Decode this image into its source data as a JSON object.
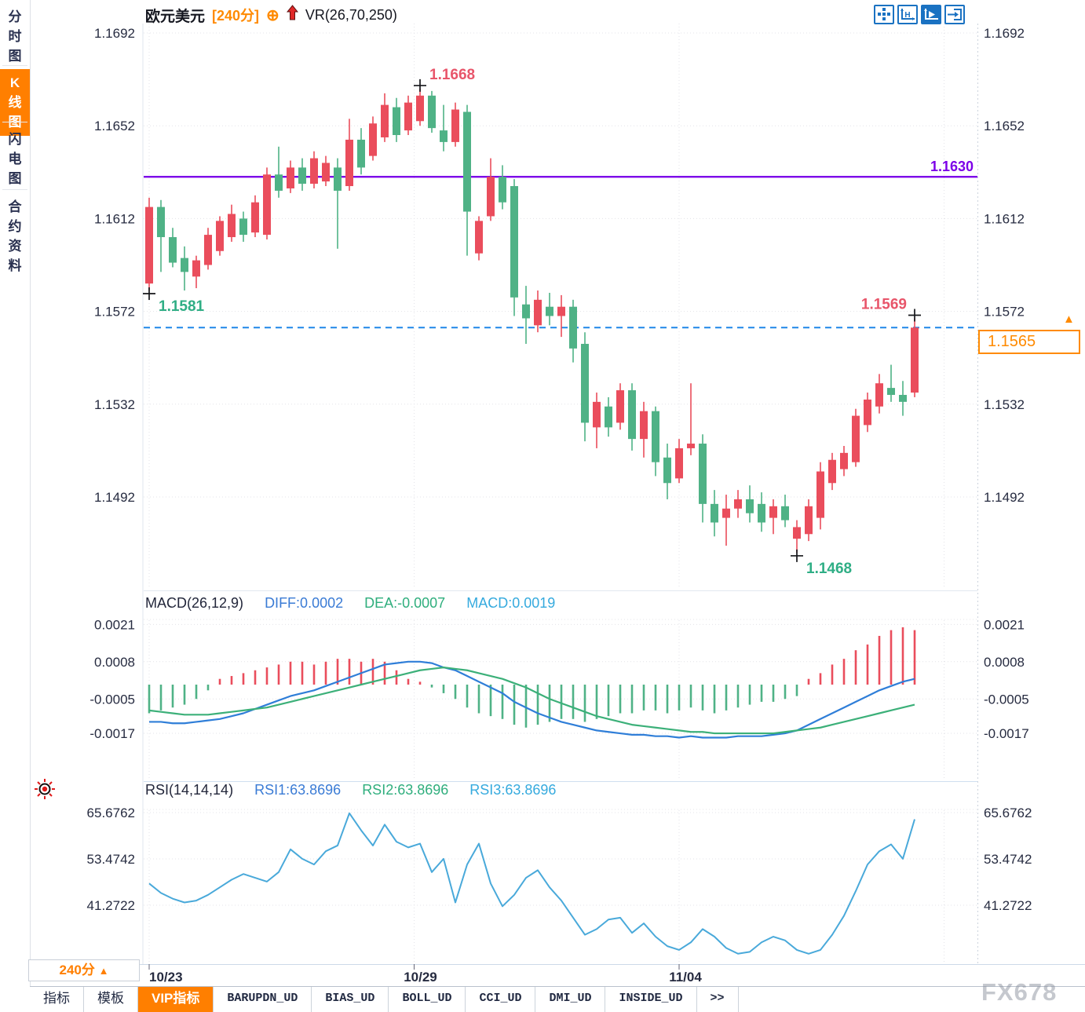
{
  "sidebar": {
    "items": [
      {
        "label": "分时图",
        "active": false
      },
      {
        "label": "K线图",
        "active": true
      },
      {
        "label": "闪电图",
        "active": false
      },
      {
        "label": "合约资料",
        "active": false
      }
    ]
  },
  "header": {
    "symbol": "欧元美元",
    "period_tag": "[240分]",
    "plus_icon": "⊕",
    "indicator_label": "VR(26,70,250)"
  },
  "toolbar": {
    "icons": [
      {
        "name": "pan-crosshair-icon",
        "active": false
      },
      {
        "name": "axis-scale-icon",
        "active": false
      },
      {
        "name": "axis-play-icon",
        "active": true
      },
      {
        "name": "exit-right-icon",
        "active": false
      }
    ]
  },
  "macd_header": {
    "title": "MACD(26,12,9)",
    "diff": "DIFF:0.0002",
    "dea": "DEA:-0.0007",
    "macd": "MACD:0.0019"
  },
  "rsi_header": {
    "title": "RSI(14,14,14)",
    "rsi1": "RSI1:63.8696",
    "rsi2": "RSI2:63.8696",
    "rsi3": "RSI3:63.8696"
  },
  "price_tag": {
    "value": "1.1565",
    "arrow": "▲"
  },
  "period_selector": {
    "label": "240分",
    "arrow": "▲"
  },
  "bottom_tabs": {
    "items": [
      {
        "label": "指标",
        "active": false
      },
      {
        "label": "模板",
        "active": false
      },
      {
        "label": "VIP指标",
        "active": true
      },
      {
        "label": "BARUPDN_UD",
        "active": false
      },
      {
        "label": "BIAS_UD",
        "active": false
      },
      {
        "label": "BOLL_UD",
        "active": false
      },
      {
        "label": "CCI_UD",
        "active": false
      },
      {
        "label": "DMI_UD",
        "active": false
      },
      {
        "label": "INSIDE_UD",
        "active": false
      },
      {
        "label": ">>",
        "active": false
      }
    ]
  },
  "watermark": "FX678",
  "colors": {
    "up": "#ea4d5c",
    "down": "#4fb286",
    "diff_line": "#2f7ed8",
    "dea_line": "#3cb079",
    "rsi_line": "#49a9da",
    "accent_orange": "#ff8a00",
    "purple": "#7c00e8",
    "dashed_blue": "#1f87e8",
    "icon_blue": "#1a72c2",
    "marker_red": "#e8556a",
    "marker_green": "#2fae85"
  },
  "chart_data": {
    "type": "candlestick",
    "title": "欧元美元 240分",
    "main": {
      "y_ticks": [
        "1.1692",
        "1.1652",
        "1.1612",
        "1.1572",
        "1.1532",
        "1.1492"
      ],
      "x_ticks": [
        {
          "label": "10/23",
          "index": 0
        },
        {
          "label": "10/29",
          "index": 22.5
        },
        {
          "label": "11/04",
          "index": 45
        }
      ],
      "support_line": {
        "value": 1.163,
        "label": "1.1630"
      },
      "last_price_line": {
        "value": 1.1565,
        "label": "1.1565"
      },
      "markers": [
        {
          "index": 0,
          "price": 1.1581,
          "pos": "low",
          "label": "1.1581",
          "color": "green",
          "align": "right"
        },
        {
          "index": 23,
          "price": 1.1668,
          "pos": "high",
          "label": "1.1668",
          "color": "red",
          "align": "right"
        },
        {
          "index": 55,
          "price": 1.1468,
          "pos": "low",
          "label": "1.1468",
          "color": "green",
          "align": "right"
        },
        {
          "index": 65,
          "price": 1.1569,
          "pos": "high",
          "label": "1.1569",
          "color": "red",
          "align": "left"
        }
      ],
      "ohlc": [
        [
          1.1584,
          1.1621,
          1.1581,
          1.1617
        ],
        [
          1.1617,
          1.162,
          1.1589,
          1.1604
        ],
        [
          1.1604,
          1.1608,
          1.1591,
          1.1593
        ],
        [
          1.1595,
          1.16,
          1.1581,
          1.1589
        ],
        [
          1.1587,
          1.1596,
          1.1582,
          1.1594
        ],
        [
          1.1592,
          1.1608,
          1.159,
          1.1605
        ],
        [
          1.1598,
          1.1613,
          1.1596,
          1.1611
        ],
        [
          1.1604,
          1.1618,
          1.1602,
          1.1614
        ],
        [
          1.1612,
          1.1615,
          1.1602,
          1.1605
        ],
        [
          1.1606,
          1.1622,
          1.1604,
          1.1619
        ],
        [
          1.1605,
          1.1634,
          1.1603,
          1.1631
        ],
        [
          1.1631,
          1.1643,
          1.1621,
          1.1624
        ],
        [
          1.1625,
          1.1637,
          1.1623,
          1.1634
        ],
        [
          1.1634,
          1.1638,
          1.1624,
          1.1627
        ],
        [
          1.1627,
          1.1641,
          1.1625,
          1.1638
        ],
        [
          1.1628,
          1.1639,
          1.1626,
          1.1636
        ],
        [
          1.1634,
          1.1638,
          1.1599,
          1.1624
        ],
        [
          1.1626,
          1.1655,
          1.1624,
          1.1646
        ],
        [
          1.1646,
          1.1651,
          1.1631,
          1.1634
        ],
        [
          1.1639,
          1.1656,
          1.1637,
          1.1653
        ],
        [
          1.1647,
          1.1666,
          1.1645,
          1.1661
        ],
        [
          1.166,
          1.1664,
          1.1645,
          1.1648
        ],
        [
          1.165,
          1.1665,
          1.1648,
          1.1662
        ],
        [
          1.1654,
          1.1668,
          1.1652,
          1.1665
        ],
        [
          1.1665,
          1.1667,
          1.1649,
          1.1651
        ],
        [
          1.165,
          1.1661,
          1.1641,
          1.1645
        ],
        [
          1.1645,
          1.1662,
          1.1643,
          1.1659
        ],
        [
          1.1658,
          1.1661,
          1.1596,
          1.1615
        ],
        [
          1.1597,
          1.1613,
          1.1594,
          1.1611
        ],
        [
          1.1613,
          1.1638,
          1.1611,
          1.163
        ],
        [
          1.163,
          1.1635,
          1.1616,
          1.1619
        ],
        [
          1.1626,
          1.1629,
          1.157,
          1.1578
        ],
        [
          1.1575,
          1.1583,
          1.1558,
          1.1569
        ],
        [
          1.1566,
          1.1581,
          1.1563,
          1.1577
        ],
        [
          1.1574,
          1.158,
          1.1566,
          1.157
        ],
        [
          1.157,
          1.1579,
          1.1561,
          1.1574
        ],
        [
          1.1574,
          1.1577,
          1.155,
          1.1556
        ],
        [
          1.1558,
          1.1563,
          1.1516,
          1.1524
        ],
        [
          1.1522,
          1.1537,
          1.1513,
          1.1533
        ],
        [
          1.1531,
          1.1535,
          1.1518,
          1.1522
        ],
        [
          1.1524,
          1.1541,
          1.1521,
          1.1538
        ],
        [
          1.1538,
          1.1541,
          1.1512,
          1.1517
        ],
        [
          1.1517,
          1.1533,
          1.1509,
          1.1529
        ],
        [
          1.1529,
          1.1531,
          1.1501,
          1.1507
        ],
        [
          1.1509,
          1.1515,
          1.1491,
          1.1498
        ],
        [
          1.15,
          1.1517,
          1.1498,
          1.1513
        ],
        [
          1.1513,
          1.1541,
          1.151,
          1.1515
        ],
        [
          1.1515,
          1.1519,
          1.1481,
          1.1489
        ],
        [
          1.1489,
          1.1495,
          1.1475,
          1.1481
        ],
        [
          1.1483,
          1.1493,
          1.1471,
          1.1487
        ],
        [
          1.1487,
          1.1495,
          1.1483,
          1.1491
        ],
        [
          1.1491,
          1.1497,
          1.1481,
          1.1485
        ],
        [
          1.1489,
          1.1494,
          1.1477,
          1.1481
        ],
        [
          1.1483,
          1.1491,
          1.1476,
          1.1488
        ],
        [
          1.1488,
          1.1493,
          1.1479,
          1.1482
        ],
        [
          1.1474,
          1.1482,
          1.1468,
          1.1479
        ],
        [
          1.1476,
          1.1491,
          1.1473,
          1.1488
        ],
        [
          1.1483,
          1.1507,
          1.1478,
          1.1503
        ],
        [
          1.1498,
          1.1511,
          1.1495,
          1.1508
        ],
        [
          1.1504,
          1.1514,
          1.1501,
          1.1511
        ],
        [
          1.1507,
          1.153,
          1.1505,
          1.1527
        ],
        [
          1.1523,
          1.1537,
          1.152,
          1.1534
        ],
        [
          1.1531,
          1.1545,
          1.1528,
          1.1541
        ],
        [
          1.1539,
          1.1549,
          1.1533,
          1.1536
        ],
        [
          1.1536,
          1.1542,
          1.1527,
          1.1533
        ],
        [
          1.1537,
          1.1569,
          1.1535,
          1.1565
        ]
      ]
    },
    "macd": {
      "params": "26,12,9",
      "y_ticks": [
        "0.0021",
        "0.0008",
        "-0.0005",
        "-0.0017"
      ],
      "hist": [
        -10,
        -9,
        -8,
        -7,
        -5,
        -2,
        2,
        3,
        4,
        5,
        6,
        7,
        8,
        8,
        7,
        8,
        9,
        9,
        8,
        9,
        8,
        5,
        2,
        1,
        -1,
        -3,
        -5,
        -8,
        -10,
        -11,
        -12,
        -14,
        -15,
        -14,
        -13,
        -12,
        -12,
        -13,
        -12,
        -11,
        -10,
        -10,
        -9,
        -9,
        -10,
        -9,
        -8,
        -9,
        -10,
        -9,
        -8,
        -7,
        -6,
        -6,
        -5,
        -4,
        2,
        4,
        7,
        9,
        12,
        14,
        17,
        19,
        20,
        19
      ],
      "diff": [
        -13,
        -13,
        -13.5,
        -13.5,
        -13,
        -12.5,
        -12,
        -11,
        -10,
        -8.5,
        -7,
        -5.5,
        -4,
        -3,
        -2,
        -0.5,
        1,
        2.5,
        4,
        5.5,
        7,
        7.5,
        8,
        8,
        7.5,
        6,
        5,
        3,
        1,
        -1,
        -3,
        -6,
        -8,
        -10,
        -11.5,
        -13,
        -14,
        -15,
        -16,
        -16.5,
        -17,
        -17.5,
        -17.5,
        -18,
        -18,
        -18.5,
        -18,
        -18.5,
        -18.5,
        -18.5,
        -18,
        -18,
        -18,
        -17.5,
        -17,
        -16,
        -14,
        -12,
        -10,
        -8,
        -6,
        -4,
        -2,
        -0.5,
        1,
        2
      ],
      "dea": [
        -9,
        -9.5,
        -10,
        -10.5,
        -10.5,
        -10.5,
        -10,
        -9.5,
        -9,
        -8.5,
        -8,
        -7,
        -6,
        -5,
        -4,
        -3,
        -2,
        -1,
        0,
        1,
        2,
        3,
        4,
        5,
        5.5,
        6,
        5.5,
        5,
        4,
        3,
        2,
        0.5,
        -1,
        -3,
        -5,
        -6.5,
        -8,
        -9.5,
        -11,
        -12,
        -13,
        -14,
        -14.5,
        -15,
        -15.5,
        -16,
        -16.5,
        -16.5,
        -17,
        -17,
        -17,
        -17,
        -17,
        -17,
        -16.5,
        -16,
        -15.5,
        -15,
        -14,
        -13,
        -12,
        -11,
        -10,
        -9,
        -8,
        -7
      ]
    },
    "rsi": {
      "params": "14,14,14",
      "y_ticks": [
        "65.6762",
        "53.4742",
        "41.2722"
      ],
      "values": [
        47,
        44.5,
        43,
        42,
        42.5,
        44,
        46,
        48,
        49.5,
        48.5,
        47.5,
        50,
        56,
        53.5,
        52,
        55.5,
        57,
        65.5,
        61,
        57,
        62.5,
        58,
        56.5,
        57.5,
        50,
        53.5,
        42,
        52,
        57.5,
        47,
        41,
        44,
        48.5,
        50.5,
        46,
        42.5,
        38,
        33.5,
        35,
        37.5,
        38,
        34,
        36.5,
        33,
        30.5,
        29.5,
        31.5,
        35,
        33,
        30,
        28.5,
        29,
        31.5,
        33,
        32,
        29.5,
        28.5,
        29.5,
        33.5,
        38.5,
        45,
        52,
        55.5,
        57.3,
        53.5,
        63.9
      ]
    }
  }
}
